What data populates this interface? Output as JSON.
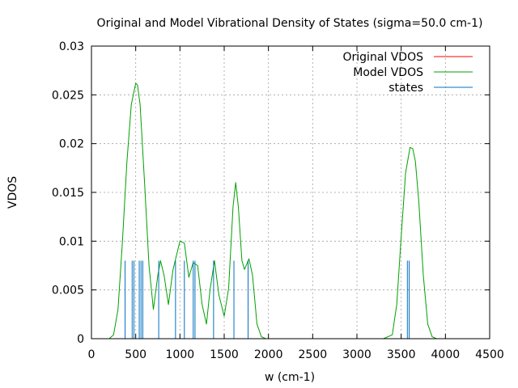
{
  "chart_data": {
    "type": "line",
    "title": "Original and Model Vibrational Density of States (sigma=50.0 cm-1)",
    "xlabel": "w (cm-1)",
    "ylabel": "VDOS",
    "xlim": [
      0,
      4500
    ],
    "ylim": [
      0,
      0.03
    ],
    "x_ticks": [
      0,
      500,
      1000,
      1500,
      2000,
      2500,
      3000,
      3500,
      4000,
      4500
    ],
    "x_tick_labels": [
      "0",
      "500",
      "1000",
      "1500",
      "2000",
      "2500",
      "3000",
      "3500",
      "4000",
      "4500"
    ],
    "y_ticks": [
      0,
      0.005,
      0.01,
      0.015,
      0.02,
      0.025,
      0.03
    ],
    "y_tick_labels": [
      "0",
      "0.005",
      "0.01",
      "0.015",
      "0.02",
      "0.025",
      "0.03"
    ],
    "grid": true,
    "legend_position": "top-right",
    "series": [
      {
        "name": "Original VDOS",
        "color": "#ff0000",
        "style": "line",
        "x": [],
        "y": []
      },
      {
        "name": "Model VDOS",
        "color": "#00a000",
        "style": "line",
        "x": [
          200,
          250,
          300,
          350,
          400,
          450,
          500,
          520,
          550,
          600,
          650,
          700,
          750,
          780,
          820,
          870,
          920,
          1000,
          1050,
          1100,
          1150,
          1200,
          1250,
          1300,
          1340,
          1390,
          1440,
          1500,
          1550,
          1600,
          1630,
          1660,
          1700,
          1730,
          1780,
          1820,
          1870,
          1920,
          1970,
          2000,
          3300,
          3400,
          3450,
          3500,
          3550,
          3600,
          3630,
          3660,
          3700,
          3750,
          3800,
          3850,
          3900
        ],
        "y": [
          0.0,
          0.0004,
          0.003,
          0.01,
          0.018,
          0.024,
          0.0262,
          0.026,
          0.024,
          0.016,
          0.0075,
          0.003,
          0.0065,
          0.008,
          0.0065,
          0.0035,
          0.007,
          0.01,
          0.0098,
          0.0063,
          0.0078,
          0.0075,
          0.0035,
          0.0015,
          0.005,
          0.008,
          0.0045,
          0.0023,
          0.0052,
          0.0135,
          0.016,
          0.0135,
          0.008,
          0.0071,
          0.0082,
          0.0065,
          0.0015,
          0.0002,
          0.0,
          0.0,
          0.0,
          0.0004,
          0.0035,
          0.0105,
          0.017,
          0.0196,
          0.0195,
          0.0182,
          0.014,
          0.0065,
          0.0015,
          0.0002,
          0.0
        ]
      },
      {
        "name": "states",
        "color": "#0070c0",
        "style": "impulses",
        "x": [
          380,
          460,
          480,
          540,
          560,
          580,
          760,
          950,
          1050,
          1150,
          1170,
          1380,
          1610,
          1770,
          3570,
          3590
        ],
        "y": [
          0.008,
          0.008,
          0.008,
          0.008,
          0.008,
          0.008,
          0.008,
          0.008,
          0.008,
          0.008,
          0.008,
          0.008,
          0.008,
          0.008,
          0.008,
          0.008
        ]
      }
    ]
  }
}
